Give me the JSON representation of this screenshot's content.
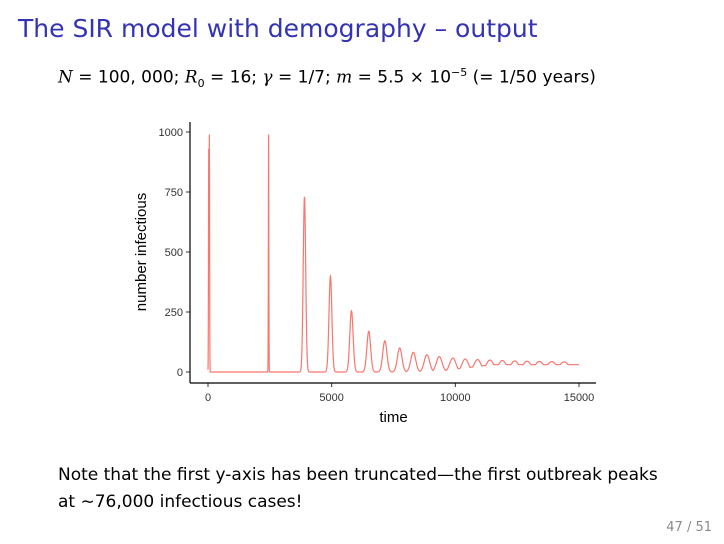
{
  "slide": {
    "title": "The SIR model with demography – output",
    "params": {
      "N_label": "N",
      "N_value": " = 100, 000; ",
      "R0_label": "R",
      "R0_sub": "0",
      "R0_value": " = 16; ",
      "gamma_label": "γ",
      "gamma_value": " = 1/7; ",
      "m_label": "m",
      "m_value": " = 5.5 × 10",
      "m_exp": "−5",
      "m_note": " (= 1/50 years)"
    },
    "note": "Note that the first y-axis has been truncated—the first outbreak peaks at ∼76,000 infectious cases!",
    "page": "47 / 51"
  },
  "chart_data": {
    "type": "line",
    "xlabel": "time",
    "ylabel": "number infectious",
    "xlim": [
      0,
      15000
    ],
    "ylim": [
      0,
      1000
    ],
    "x_ticks": [
      0,
      5000,
      10000,
      15000
    ],
    "y_ticks": [
      0,
      250,
      500,
      750,
      1000
    ],
    "grid": false,
    "line_color": "#f8766d",
    "series": [
      {
        "peaks": [
          {
            "t": 30,
            "value": 930
          },
          {
            "t": 55,
            "value": 990
          },
          {
            "t": 2450,
            "value": 990
          },
          {
            "t": 3900,
            "value": 730
          },
          {
            "t": 4950,
            "value": 400
          },
          {
            "t": 5800,
            "value": 255
          },
          {
            "t": 6500,
            "value": 170
          },
          {
            "t": 7150,
            "value": 130
          },
          {
            "t": 7750,
            "value": 100
          },
          {
            "t": 8300,
            "value": 82
          },
          {
            "t": 8850,
            "value": 72
          },
          {
            "t": 9350,
            "value": 64
          },
          {
            "t": 9900,
            "value": 58
          },
          {
            "t": 10400,
            "value": 54
          },
          {
            "t": 10900,
            "value": 52
          },
          {
            "t": 11400,
            "value": 50
          },
          {
            "t": 11900,
            "value": 48
          },
          {
            "t": 12400,
            "value": 46
          },
          {
            "t": 12900,
            "value": 45
          },
          {
            "t": 13400,
            "value": 44
          },
          {
            "t": 13900,
            "value": 43
          },
          {
            "t": 14400,
            "value": 42
          }
        ],
        "baseline": 0,
        "equilibrium": 38,
        "t_end": 15000
      }
    ]
  }
}
